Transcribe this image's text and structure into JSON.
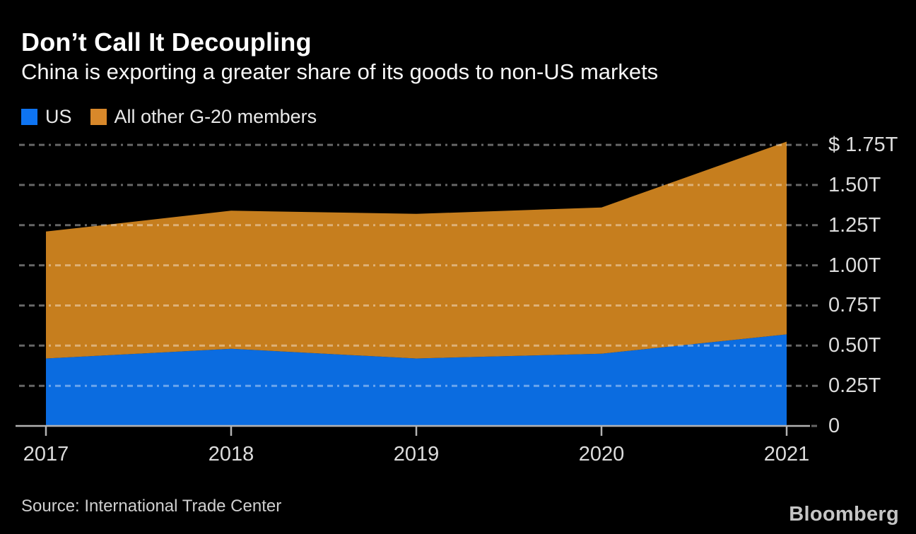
{
  "header": {
    "title": "Don’t Call It Decoupling",
    "subtitle": "China is exporting a greater share of its goods to non-US markets"
  },
  "legend": [
    {
      "label": "US",
      "color": "#0e74f2"
    },
    {
      "label": "All other G-20 members",
      "color": "#d8882a"
    }
  ],
  "footer": {
    "source": "Source: International Trade Center",
    "brand": "Bloomberg"
  },
  "chart_data": {
    "type": "area",
    "stacked": true,
    "x": [
      2017,
      2018,
      2019,
      2020,
      2021
    ],
    "series": [
      {
        "name": "US",
        "values": [
          0.42,
          0.48,
          0.42,
          0.45,
          0.57
        ],
        "color": "#0b6ce0"
      },
      {
        "name": "All other G-20 members",
        "values": [
          0.79,
          0.86,
          0.9,
          0.91,
          1.2
        ],
        "color": "#c67e1e"
      }
    ],
    "stacked_totals": [
      1.21,
      1.34,
      1.32,
      1.36,
      1.77
    ],
    "unit": "trillion USD",
    "ylim": [
      0,
      1.75
    ],
    "yticks": [
      0,
      0.25,
      0.5,
      0.75,
      1.0,
      1.25,
      1.5,
      1.75
    ],
    "ytick_labels": [
      "0",
      "0.25T",
      "0.50T",
      "0.75T",
      "1.00T",
      "1.25T",
      "1.50T",
      "$ 1.75T"
    ],
    "grid": "dashed horizontal, drawn over areas",
    "legend_position": "top-left",
    "axis_label_side": "right"
  }
}
